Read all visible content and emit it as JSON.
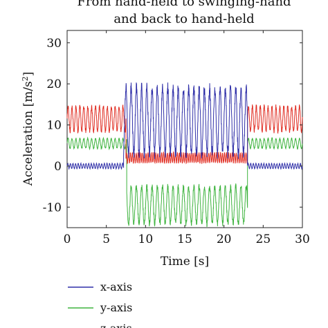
{
  "chart_data": {
    "type": "line",
    "title_lines": [
      "From hand-held to swinging-hand",
      "and back to hand-held"
    ],
    "xlabel": "Time [s]",
    "ylabel_main": "Acceleration [m/s",
    "ylabel_sup": "2",
    "ylabel_tail": "]",
    "xlim": [
      0,
      30
    ],
    "ylim": [
      -15,
      33
    ],
    "xticks": [
      0,
      5,
      10,
      15,
      20,
      25,
      30
    ],
    "yticks": [
      -10,
      0,
      10,
      20,
      30
    ],
    "grid": false,
    "legend_position": "below",
    "series": [
      {
        "name": "x-axis",
        "color": "#2f2fa8",
        "segments": [
          {
            "x0": 0.0,
            "x1": 7.2,
            "base": 0.0,
            "amp": 0.6,
            "freq": 3.0
          },
          {
            "x0": 7.2,
            "x1": 23.0,
            "base": 11.0,
            "amp": 8.0,
            "freq": 1.5
          },
          {
            "x0": 23.0,
            "x1": 30.0,
            "base": 0.0,
            "amp": 0.6,
            "freq": 3.0
          }
        ]
      },
      {
        "name": "y-axis",
        "color": "#3db33d",
        "segments": [
          {
            "x0": 0.0,
            "x1": 7.6,
            "base": 5.5,
            "amp": 1.2,
            "freq": 2.0
          },
          {
            "x0": 7.6,
            "x1": 23.0,
            "base": -9.5,
            "amp": 4.5,
            "freq": 1.5
          },
          {
            "x0": 23.0,
            "x1": 30.0,
            "base": 5.5,
            "amp": 1.2,
            "freq": 2.0
          }
        ]
      },
      {
        "name": "z-axis",
        "color": "#e02a1f",
        "segments": [
          {
            "x0": 0.0,
            "x1": 7.5,
            "base": 11.5,
            "amp": 3.0,
            "freq": 2.0
          },
          {
            "x0": 7.5,
            "x1": 23.0,
            "base": 2.0,
            "amp": 1.2,
            "freq": 4.0
          },
          {
            "x0": 23.0,
            "x1": 30.0,
            "base": 11.5,
            "amp": 3.0,
            "freq": 2.0
          }
        ]
      }
    ]
  }
}
